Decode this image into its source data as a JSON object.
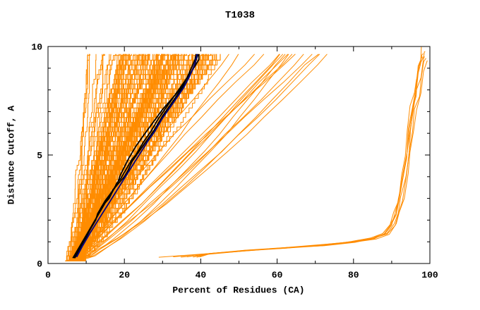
{
  "window": {
    "background": "#ffffff"
  },
  "chart_data": {
    "type": "line",
    "title": "T1038",
    "xlabel": "Percent of Residues (CA)",
    "ylabel": "Distance Cutoff, A",
    "xlim": [
      0,
      100
    ],
    "ylim": [
      0,
      10
    ],
    "x_ticks": [
      0,
      20,
      40,
      60,
      80,
      100
    ],
    "y_ticks": [
      0,
      5,
      10
    ],
    "x_minor_step": 10,
    "y_minor_step": 1,
    "grid": false,
    "legend": "none",
    "axis_color": "#000000",
    "ensemble": {
      "description": "dense bundle of predicted-model GDT curves",
      "color": "#FF8C00",
      "count": 165,
      "seed": 1038,
      "y_top": 9.65,
      "x_start_range": [
        4.5,
        8.5
      ],
      "x_top_buckets": [
        {
          "range": [
            10,
            18
          ],
          "weight": 0.08
        },
        {
          "range": [
            18,
            30
          ],
          "weight": 0.35
        },
        {
          "range": [
            30,
            44
          ],
          "weight": 0.47
        },
        {
          "range": [
            44,
            76
          ],
          "weight": 0.1
        }
      ],
      "shape_exponent_range": [
        0.75,
        1.25
      ],
      "jitter": 0.9,
      "smooth_above_x_top": 46
    },
    "native_like_group": {
      "description": "tight group of high-accuracy curves hugging the bottom then rising near 90-100%",
      "color": "#FF8C00",
      "count": 7,
      "x_spread": 1.5,
      "start_x_range": [
        29,
        40
      ],
      "base_points": [
        [
          33,
          0.3
        ],
        [
          42,
          0.45
        ],
        [
          52,
          0.6
        ],
        [
          62,
          0.72
        ],
        [
          72,
          0.85
        ],
        [
          80,
          1.0
        ],
        [
          85,
          1.15
        ],
        [
          88,
          1.4
        ],
        [
          90,
          1.8
        ],
        [
          91,
          2.3
        ],
        [
          92,
          3.0
        ],
        [
          93,
          4.0
        ],
        [
          93.8,
          5.0
        ],
        [
          94.6,
          6.0
        ],
        [
          95.4,
          7.0
        ],
        [
          96.2,
          8.0
        ],
        [
          97,
          8.8
        ],
        [
          97.8,
          9.4
        ],
        [
          98.4,
          9.6
        ]
      ]
    },
    "highlighted_series": [
      {
        "name": "model-curve-black-1",
        "color": "#000000",
        "width": 1.8,
        "points": [
          [
            6.5,
            0.25
          ],
          [
            9,
            1.0
          ],
          [
            11,
            1.6
          ],
          [
            13,
            2.2
          ],
          [
            14,
            2.6
          ],
          [
            16,
            3.1
          ],
          [
            17,
            3.4
          ],
          [
            20,
            4.0
          ],
          [
            21,
            4.3
          ],
          [
            22,
            4.7
          ],
          [
            24,
            5.2
          ],
          [
            26,
            5.7
          ],
          [
            28,
            6.2
          ],
          [
            30,
            6.8
          ],
          [
            32,
            7.3
          ],
          [
            34,
            7.8
          ],
          [
            36,
            8.3
          ],
          [
            37.5,
            8.8
          ],
          [
            38.5,
            9.2
          ],
          [
            39,
            9.5
          ],
          [
            39.3,
            9.65
          ]
        ]
      },
      {
        "name": "model-curve-black-2",
        "color": "#000000",
        "width": 1.8,
        "points": [
          [
            7,
            0.25
          ],
          [
            10,
            1.2
          ],
          [
            12,
            1.9
          ],
          [
            15,
            2.8
          ],
          [
            16,
            3.0
          ],
          [
            18,
            3.7
          ],
          [
            19,
            3.9
          ],
          [
            22,
            4.8
          ],
          [
            23,
            5.0
          ],
          [
            25,
            5.6
          ],
          [
            27,
            6.1
          ],
          [
            29,
            6.7
          ],
          [
            31,
            7.2
          ],
          [
            33,
            7.7
          ],
          [
            35,
            8.2
          ],
          [
            37,
            8.7
          ],
          [
            38.5,
            9.1
          ],
          [
            39.5,
            9.4
          ],
          [
            39.5,
            9.65
          ]
        ]
      },
      {
        "name": "model-curve-black-3",
        "color": "#000000",
        "width": 1.8,
        "points": [
          [
            6.8,
            0.25
          ],
          [
            8.5,
            0.8
          ],
          [
            10.5,
            1.4
          ],
          [
            12.5,
            2.0
          ],
          [
            13,
            2.3
          ],
          [
            15,
            2.9
          ],
          [
            18,
            3.6
          ],
          [
            19,
            4.1
          ],
          [
            21,
            4.8
          ],
          [
            23,
            5.4
          ],
          [
            25,
            5.9
          ],
          [
            27.5,
            6.5
          ],
          [
            30,
            7.1
          ],
          [
            32.5,
            7.6
          ],
          [
            35,
            8.1
          ],
          [
            36.5,
            8.6
          ],
          [
            37.5,
            9.0
          ],
          [
            38.5,
            9.4
          ],
          [
            38.8,
            9.65
          ]
        ]
      },
      {
        "name": "model-curve-navy",
        "color": "#000080",
        "width": 1.8,
        "points": [
          [
            7.5,
            0.3
          ],
          [
            9,
            0.8
          ],
          [
            11,
            1.4
          ],
          [
            13.5,
            2.1
          ],
          [
            16,
            2.8
          ],
          [
            18.5,
            3.5
          ],
          [
            21,
            4.2
          ],
          [
            23.5,
            4.9
          ],
          [
            26,
            5.6
          ],
          [
            28,
            6.1
          ],
          [
            30,
            6.7
          ],
          [
            32,
            7.2
          ],
          [
            34,
            7.7
          ],
          [
            35.5,
            8.1
          ],
          [
            37,
            8.6
          ],
          [
            38,
            9.0
          ],
          [
            38.8,
            9.4
          ],
          [
            39,
            9.65
          ]
        ]
      }
    ]
  }
}
